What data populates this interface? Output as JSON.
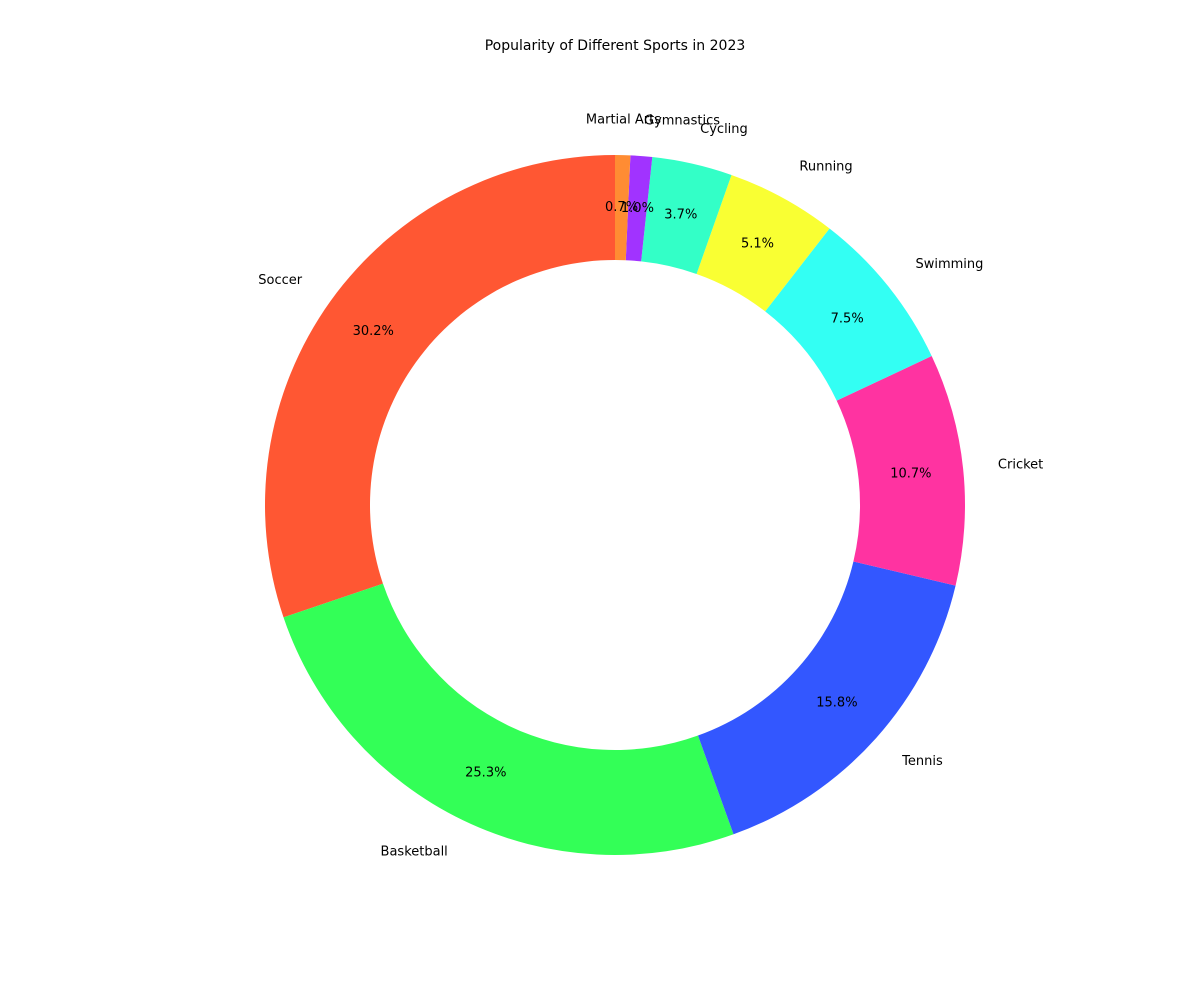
{
  "chart_data": {
    "type": "pie",
    "donut": true,
    "title": "Popularity of Different Sports in 2023",
    "start_angle_deg": 90,
    "direction": "counterclockwise",
    "categories": [
      "Soccer",
      "Basketball",
      "Tennis",
      "Cricket",
      "Swimming",
      "Running",
      "Cycling",
      "Gymnastics",
      "Martial Arts"
    ],
    "values": [
      30.2,
      25.3,
      15.8,
      10.7,
      7.5,
      5.1,
      3.7,
      1.0,
      0.7
    ],
    "value_labels": [
      "30.2%",
      "25.3%",
      "15.8%",
      "10.7%",
      "7.5%",
      "5.1%",
      "3.7%",
      "1.0%",
      "0.7%"
    ],
    "colors": [
      "#ff5733",
      "#33ff57",
      "#3357ff",
      "#ff33a1",
      "#33fff3",
      "#f9ff33",
      "#33ffc7",
      "#a133ff",
      "#ff8c33"
    ],
    "legend": "none",
    "grid": false
  }
}
